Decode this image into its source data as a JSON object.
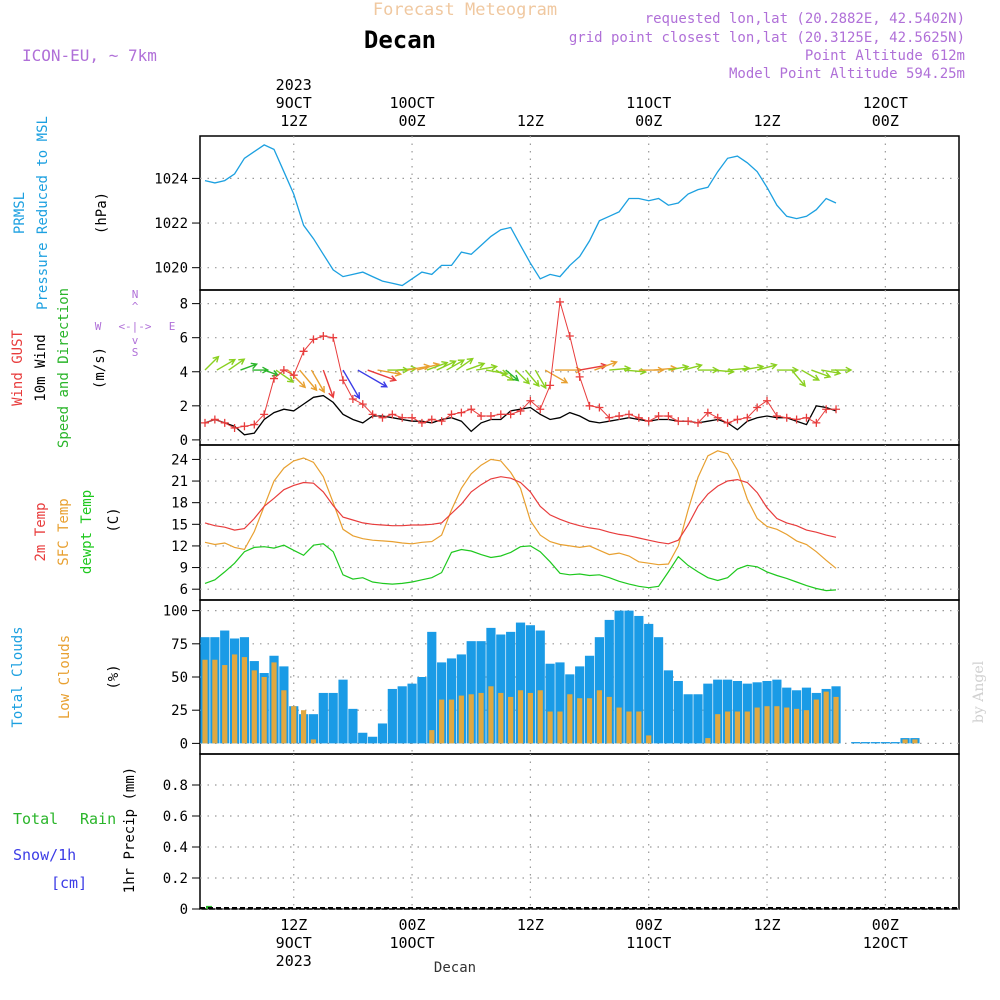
{
  "header": {
    "title": "Forecast Meteogram",
    "location": "Decan",
    "model": "ICON-EU, ~ 7km",
    "requested": "requested lon,lat (20.2882E, 42.5402N)",
    "gridpoint": "grid point closest lon,lat (20.3125E, 42.5625N)",
    "point_alt": "Point Altitude 612m",
    "model_alt": "Model Point Altitude 594.25m"
  },
  "footer": {
    "location": "Decan",
    "watermark": "by Angel"
  },
  "time_axis": {
    "hour_start": 3,
    "hour_end": 67,
    "top_ticks": [
      {
        "h": 12,
        "lines": [
          "2023",
          "9OCT",
          "12Z"
        ]
      },
      {
        "h": 24,
        "lines": [
          "10OCT",
          "00Z"
        ]
      },
      {
        "h": 36,
        "lines": [
          "12Z"
        ]
      },
      {
        "h": 48,
        "lines": [
          "11OCT",
          "00Z"
        ]
      },
      {
        "h": 60,
        "lines": [
          "12Z"
        ]
      },
      {
        "h": 72,
        "lines": [
          "12OCT",
          "00Z"
        ]
      }
    ],
    "bottom_ticks": [
      {
        "h": 12,
        "lines": [
          "12Z",
          "9OCT",
          "2023"
        ]
      },
      {
        "h": 24,
        "lines": [
          "00Z",
          "10OCT"
        ]
      },
      {
        "h": 36,
        "lines": [
          "12Z"
        ]
      },
      {
        "h": 48,
        "lines": [
          "00Z",
          "11OCT"
        ]
      },
      {
        "h": 60,
        "lines": [
          "12Z"
        ]
      },
      {
        "h": 72,
        "lines": [
          "00Z",
          "12OCT"
        ]
      }
    ]
  },
  "panels": {
    "pressure": {
      "labels": [
        {
          "text": "PRMSL",
          "color": "#1ca0e0"
        },
        {
          "text": "Pressure Reduced to MSL",
          "color": "#1ca0e0"
        },
        {
          "text": "(hPa)",
          "color": "#000000"
        }
      ],
      "yticks": [
        "1020",
        "1022",
        "1024"
      ]
    },
    "wind": {
      "labels": [
        {
          "text": "Wind GUST",
          "color": "#e83c3c"
        },
        {
          "text": "10m Wind",
          "color": "#000000"
        },
        {
          "text": "Speed and Direction",
          "color": "#2ab52a"
        },
        {
          "text": "(m/s)",
          "color": "#000000"
        }
      ],
      "yticks": [
        "0",
        "2",
        "4",
        "6",
        "8"
      ],
      "compass": {
        "n": "N",
        "s": "S",
        "w": "W",
        "e": "E",
        "arrow": "<-|->",
        "v1": "^",
        "v2": "|",
        "v3": "v"
      }
    },
    "temperature": {
      "labels": [
        {
          "text": "2m Temp",
          "color": "#e83c3c"
        },
        {
          "text": "SFC Temp",
          "color": "#e8a030"
        },
        {
          "text": "dewpt Temp",
          "color": "#1ec81e"
        },
        {
          "text": "(C)",
          "color": "#000000"
        }
      ],
      "yticks": [
        "6",
        "9",
        "12",
        "15",
        "18",
        "21",
        "24"
      ]
    },
    "clouds": {
      "labels": [
        {
          "text": "Total Clouds",
          "color": "#1ca0e0"
        },
        {
          "text": "Low Clouds",
          "color": "#e8a030"
        },
        {
          "text": "(%)",
          "color": "#000000"
        }
      ],
      "yticks": [
        "0",
        "25",
        "50",
        "75",
        "100"
      ]
    },
    "precip": {
      "labels": [
        {
          "text": "Total",
          "color": "#2ab52a"
        },
        {
          "text": "Rain",
          "color": "#2ab52a"
        },
        {
          "text": "Snow/1h",
          "color": "#3c3ce6"
        },
        {
          "text": "[cm]",
          "color": "#3c3ce6"
        },
        {
          "text": "1hr Precip (mm)",
          "color": "#000000"
        }
      ],
      "yticks": [
        "0",
        "0.2",
        "0.4",
        "0.6",
        "0.8"
      ]
    }
  },
  "colors": {
    "pressure": "#1ca0e0",
    "gust": "#e83c3c",
    "wind": "#000000",
    "temp2m": "#e83c3c",
    "sfc": "#e8a030",
    "dewpt": "#1ec81e",
    "total_cloud": "#1a9be6",
    "low_cloud": "#e0a840",
    "rain": "#2ab52a",
    "purple": "#b070d8",
    "grid": "#999999"
  },
  "chart_data": [
    {
      "type": "line",
      "name": "PRMSL",
      "x_hours": [
        3,
        4,
        5,
        6,
        7,
        8,
        9,
        10,
        11,
        12,
        13,
        14,
        15,
        16,
        17,
        18,
        19,
        20,
        21,
        22,
        23,
        24,
        25,
        26,
        27,
        28,
        29,
        30,
        31,
        32,
        33,
        34,
        35,
        36,
        37,
        38,
        39,
        40,
        41,
        42,
        43,
        44,
        45,
        46,
        47,
        48,
        49,
        50,
        51,
        52,
        53,
        54,
        55,
        56,
        57,
        58,
        59,
        60,
        61,
        62,
        63,
        64,
        65,
        66,
        67
      ],
      "y": [
        1023.9,
        1023.8,
        1023.9,
        1024.2,
        1024.9,
        1025.2,
        1025.5,
        1025.3,
        1024.3,
        1023.3,
        1021.9,
        1021.3,
        1020.6,
        1019.9,
        1019.6,
        1019.7,
        1019.8,
        1019.6,
        1019.4,
        1019.3,
        1019.2,
        1019.5,
        1019.8,
        1019.7,
        1020.1,
        1020.1,
        1020.7,
        1020.6,
        1021.0,
        1021.4,
        1021.7,
        1021.8,
        1021.0,
        1020.2,
        1019.5,
        1019.7,
        1019.6,
        1020.1,
        1020.5,
        1021.2,
        1022.1,
        1022.3,
        1022.5,
        1023.1,
        1023.1,
        1023.0,
        1023.1,
        1022.8,
        1022.9,
        1023.3,
        1023.5,
        1023.6,
        1024.3,
        1024.9,
        1025.0,
        1024.7,
        1024.3,
        1023.6,
        1022.8,
        1022.3,
        1022.2,
        1022.3,
        1022.6,
        1023.1,
        1022.9
      ],
      "ylim": [
        1019,
        1025.9
      ],
      "yticks": [
        1020,
        1022,
        1024
      ]
    },
    {
      "type": "line",
      "name": "Wind",
      "x_hours": [
        3,
        4,
        5,
        6,
        7,
        8,
        9,
        10,
        11,
        12,
        13,
        14,
        15,
        16,
        17,
        18,
        19,
        20,
        21,
        22,
        23,
        24,
        25,
        26,
        27,
        28,
        29,
        30,
        31,
        32,
        33,
        34,
        35,
        36,
        37,
        38,
        39,
        40,
        41,
        42,
        43,
        44,
        45,
        46,
        47,
        48,
        49,
        50,
        51,
        52,
        53,
        54,
        55,
        56,
        57,
        58,
        59,
        60,
        61,
        62,
        63,
        64,
        65,
        66,
        67
      ],
      "gust": [
        1.0,
        1.2,
        1.0,
        0.7,
        0.8,
        0.9,
        1.5,
        3.6,
        4.1,
        3.8,
        5.2,
        5.9,
        6.1,
        6.0,
        3.5,
        2.4,
        2.1,
        1.5,
        1.3,
        1.5,
        1.3,
        1.3,
        1.0,
        1.2,
        1.1,
        1.5,
        1.6,
        1.8,
        1.4,
        1.4,
        1.5,
        1.5,
        1.7,
        2.3,
        1.8,
        3.2,
        8.1,
        6.1,
        3.7,
        2.0,
        1.9,
        1.3,
        1.4,
        1.5,
        1.3,
        1.1,
        1.4,
        1.4,
        1.1,
        1.1,
        1.0,
        1.6,
        1.3,
        1.0,
        1.2,
        1.3,
        1.9,
        2.3,
        1.4,
        1.3,
        1.2,
        1.3,
        1.0,
        1.8,
        1.8
      ],
      "wind": [
        1.0,
        1.2,
        1.0,
        0.8,
        0.3,
        0.4,
        1.2,
        1.6,
        1.8,
        1.7,
        2.1,
        2.5,
        2.6,
        2.2,
        1.5,
        1.2,
        1.0,
        1.4,
        1.4,
        1.3,
        1.2,
        1.1,
        1.1,
        1.0,
        1.2,
        1.3,
        1.1,
        0.5,
        1.0,
        1.2,
        1.2,
        1.7,
        1.8,
        1.9,
        1.5,
        1.2,
        1.3,
        1.6,
        1.4,
        1.1,
        1.0,
        1.1,
        1.2,
        1.3,
        1.2,
        1.1,
        1.2,
        1.2,
        1.1,
        1.1,
        1.0,
        1.1,
        1.2,
        1.0,
        0.6,
        1.1,
        1.3,
        1.4,
        1.3,
        1.3,
        1.1,
        0.9,
        2.0,
        1.9,
        1.7
      ],
      "arrows": {
        "x_hours": [
          3,
          4.2,
          5.4,
          6.6,
          7.8,
          9,
          10.2,
          11.4,
          12.6,
          13.8,
          15,
          17,
          18.5,
          19.5,
          20.5,
          21.5,
          22.5,
          23.5,
          24.5,
          25.5,
          26.5,
          27.5,
          28.5,
          29.5,
          30.5,
          31.5,
          32.5,
          33.5,
          34.5,
          35.5,
          36.5,
          37.5,
          38.5,
          41,
          42.5,
          44,
          45.5,
          47,
          48.5,
          50,
          51.5,
          53,
          54.5,
          56,
          57.5,
          59,
          61,
          62.5,
          63.5,
          64.5,
          65.5,
          66.5
        ],
        "dir_deg": [
          225,
          240,
          235,
          250,
          270,
          290,
          305,
          315,
          320,
          330,
          340,
          330,
          300,
          290,
          280,
          270,
          265,
          260,
          255,
          250,
          245,
          240,
          235,
          250,
          260,
          280,
          300,
          310,
          315,
          320,
          330,
          300,
          270,
          260,
          250,
          265,
          275,
          270,
          265,
          260,
          255,
          270,
          275,
          265,
          260,
          255,
          270,
          320,
          300,
          290,
          280,
          270
        ],
        "speed": [
          1.0,
          1.2,
          1.0,
          0.8,
          0.6,
          0.5,
          1.2,
          1.6,
          1.8,
          1.7,
          2.1,
          2.5,
          2.6,
          2.2,
          1.5,
          1.2,
          1.0,
          1.4,
          1.4,
          1.3,
          1.2,
          1.1,
          1.1,
          1.0,
          1.2,
          1.3,
          1.1,
          0.7,
          1.0,
          1.2,
          1.2,
          1.7,
          1.8,
          1.9,
          1.5,
          1.2,
          1.3,
          1.6,
          1.4,
          1.1,
          1.0,
          1.1,
          1.2,
          1.3,
          1.2,
          1.1,
          1.2,
          1.2,
          1.1,
          1.1,
          1.0,
          1.1
        ]
      },
      "ylim": [
        -0.3,
        8.8
      ],
      "yticks": [
        0,
        2,
        4,
        6,
        8
      ],
      "ylabel": "(m/s)"
    },
    {
      "type": "line",
      "name": "Temperature",
      "x_hours": [
        3,
        4,
        5,
        6,
        7,
        8,
        9,
        10,
        11,
        12,
        13,
        14,
        15,
        16,
        17,
        18,
        19,
        20,
        21,
        22,
        23,
        24,
        25,
        26,
        27,
        28,
        29,
        30,
        31,
        32,
        33,
        34,
        35,
        36,
        37,
        38,
        39,
        40,
        41,
        42,
        43,
        44,
        45,
        46,
        47,
        48,
        49,
        50,
        51,
        52,
        53,
        54,
        55,
        56,
        57,
        58,
        59,
        60,
        61,
        62,
        63,
        64,
        65,
        66,
        67
      ],
      "t2m": [
        15.2,
        14.8,
        14.6,
        14.2,
        14.4,
        15.8,
        17.5,
        18.6,
        19.8,
        20.4,
        20.8,
        20.7,
        19.5,
        17.6,
        16.0,
        15.6,
        15.2,
        15.0,
        14.9,
        14.8,
        14.8,
        14.9,
        14.9,
        15.0,
        15.2,
        16.5,
        17.8,
        19.5,
        20.5,
        21.3,
        21.6,
        21.4,
        20.8,
        19.5,
        17.5,
        16.3,
        15.7,
        15.2,
        14.8,
        14.5,
        14.3,
        13.9,
        13.6,
        13.4,
        13.1,
        12.8,
        12.5,
        12.3,
        12.8,
        14.9,
        17.5,
        19.2,
        20.3,
        21.0,
        21.2,
        20.8,
        19.4,
        17.3,
        15.8,
        15.2,
        14.8,
        14.2,
        13.9,
        13.5,
        13.2
      ],
      "sfc": [
        12.5,
        12.2,
        12.4,
        11.8,
        11.5,
        14.0,
        17.5,
        21.0,
        22.8,
        23.8,
        24.2,
        23.6,
        21.6,
        18.0,
        14.3,
        13.4,
        13.0,
        12.8,
        12.7,
        12.6,
        12.4,
        12.3,
        12.5,
        12.6,
        13.5,
        17.0,
        20.0,
        22.0,
        23.2,
        24.0,
        23.8,
        22.2,
        20.0,
        15.5,
        13.5,
        12.6,
        12.2,
        12.0,
        11.8,
        12.0,
        11.4,
        10.8,
        11.0,
        10.6,
        9.8,
        9.6,
        9.4,
        9.5,
        12.0,
        17.0,
        21.5,
        24.5,
        25.2,
        24.8,
        22.5,
        18.5,
        15.8,
        14.7,
        14.3,
        13.6,
        12.7,
        12.2,
        11.2,
        10.0,
        8.9
      ],
      "dewpt": [
        6.8,
        7.3,
        8.4,
        9.6,
        11.2,
        11.8,
        11.9,
        11.7,
        12.1,
        11.4,
        10.7,
        12.1,
        12.3,
        11.2,
        8.0,
        7.4,
        7.6,
        7.0,
        6.8,
        6.7,
        6.8,
        7.0,
        7.3,
        7.6,
        8.3,
        11.1,
        11.5,
        11.3,
        10.8,
        10.4,
        10.6,
        11.1,
        11.9,
        12.0,
        11.2,
        9.8,
        8.2,
        8.0,
        8.1,
        7.9,
        8.0,
        7.6,
        7.1,
        6.7,
        6.4,
        6.2,
        6.4,
        8.4,
        10.5,
        9.3,
        8.4,
        7.6,
        7.2,
        7.6,
        8.8,
        9.3,
        9.1,
        8.4,
        7.9,
        7.5,
        7.0,
        6.5,
        6.1,
        5.8,
        5.9
      ],
      "ylim": [
        4.5,
        26
      ],
      "yticks": [
        6,
        9,
        12,
        15,
        18,
        21,
        24
      ],
      "ylabel": "(C)"
    },
    {
      "type": "bar",
      "name": "Clouds",
      "x_hours": [
        3,
        4,
        5,
        6,
        7,
        8,
        9,
        10,
        11,
        12,
        13,
        14,
        15,
        16,
        17,
        18,
        19,
        20,
        21,
        22,
        23,
        24,
        25,
        26,
        27,
        28,
        29,
        30,
        31,
        32,
        33,
        34,
        35,
        36,
        37,
        38,
        39,
        40,
        41,
        42,
        43,
        44,
        45,
        46,
        47,
        48,
        49,
        50,
        51,
        52,
        53,
        54,
        55,
        56,
        57,
        58,
        59,
        60,
        61,
        62,
        63,
        64,
        65,
        66,
        67
      ],
      "total": [
        80,
        80,
        85,
        79,
        80,
        62,
        53,
        66,
        58,
        28,
        22,
        22,
        38,
        38,
        48,
        26,
        8,
        5,
        15,
        41,
        43,
        45,
        50,
        84,
        61,
        64,
        67,
        77,
        77,
        87,
        82,
        84,
        91,
        89,
        85,
        60,
        61,
        52,
        58,
        66,
        80,
        93,
        100,
        100,
        96,
        90,
        80,
        55,
        47,
        37,
        37,
        45,
        48,
        48,
        47,
        45,
        46,
        47,
        48,
        42,
        40,
        42,
        38,
        41,
        43
      ],
      "low": [
        63,
        63,
        59,
        67,
        65,
        55,
        50,
        61,
        40,
        28,
        25,
        3,
        0,
        0,
        0,
        0,
        0,
        0,
        0,
        0,
        0,
        0,
        0,
        10,
        33,
        33,
        36,
        37,
        38,
        43,
        38,
        35,
        40,
        38,
        40,
        24,
        24,
        37,
        34,
        34,
        40,
        35,
        27,
        24,
        24,
        6,
        0,
        0,
        0,
        0,
        0,
        4,
        22,
        24,
        24,
        24,
        27,
        28,
        28,
        27,
        26,
        25,
        33,
        39,
        35
      ],
      "x_hours_tail": [
        69,
        70,
        71,
        72,
        73,
        74,
        75
      ],
      "total_tail": [
        1,
        1,
        1,
        1,
        1,
        4,
        4
      ],
      "low_tail": [
        0,
        0,
        0,
        0,
        0,
        3,
        3
      ],
      "ylim": [
        -8,
        108
      ],
      "yticks": [
        0,
        25,
        50,
        75,
        100
      ],
      "ylabel": "(%)"
    },
    {
      "type": "bar",
      "name": "Precip",
      "x_hours": [
        3
      ],
      "rain": [
        0.02
      ],
      "ylim": [
        0,
        1
      ],
      "yticks": [
        0,
        0.2,
        0.4,
        0.6,
        0.8
      ],
      "ylabel": "1hr Precip (mm)"
    }
  ]
}
